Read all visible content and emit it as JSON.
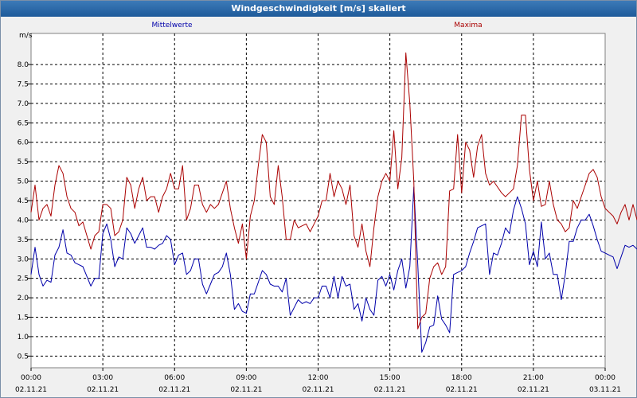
{
  "window": {
    "title": "Windgeschwindigkeit [m/s] skaliert"
  },
  "chart_data": {
    "type": "line",
    "y_unit": "m/s",
    "ylim": [
      0.2,
      8.8
    ],
    "y_ticks": [
      "0.5",
      "1.0",
      "1.5",
      "2.0",
      "2.5",
      "3.0",
      "3.5",
      "4.0",
      "4.5",
      "5.0",
      "5.5",
      "6.0",
      "6.5",
      "7.0",
      "7.5",
      "8.0"
    ],
    "xlim_hours": [
      0,
      24
    ],
    "x_ticks": [
      {
        "time": "00:00",
        "date": "02.11.21"
      },
      {
        "time": "03:00",
        "date": "02.11.21"
      },
      {
        "time": "06:00",
        "date": "02.11.21"
      },
      {
        "time": "09:00",
        "date": "02.11.21"
      },
      {
        "time": "12:00",
        "date": "02.11.21"
      },
      {
        "time": "15:00",
        "date": "02.11.21"
      },
      {
        "time": "18:00",
        "date": "02.11.21"
      },
      {
        "time": "21:00",
        "date": "02.11.21"
      },
      {
        "time": "00:00",
        "date": "03.11.21"
      }
    ],
    "grid": true,
    "sample_interval_minutes": 10,
    "series": [
      {
        "name": "Mittelwerte",
        "color": "#0000aa",
        "values": [
          2.6,
          3.3,
          2.6,
          2.3,
          2.45,
          2.4,
          3.1,
          3.3,
          3.75,
          3.15,
          3.1,
          2.9,
          2.85,
          2.8,
          2.55,
          2.3,
          2.5,
          2.5,
          3.65,
          3.9,
          3.5,
          2.8,
          3.05,
          3.0,
          3.8,
          3.65,
          3.4,
          3.6,
          3.8,
          3.3,
          3.3,
          3.25,
          3.35,
          3.4,
          3.6,
          3.5,
          2.85,
          3.1,
          3.15,
          2.6,
          2.7,
          3.0,
          3.0,
          2.35,
          2.1,
          2.35,
          2.6,
          2.65,
          2.8,
          3.15,
          2.6,
          1.7,
          1.85,
          1.65,
          1.6,
          2.1,
          2.1,
          2.4,
          2.7,
          2.6,
          2.35,
          2.3,
          2.3,
          2.15,
          2.5,
          1.55,
          1.75,
          1.95,
          1.85,
          1.9,
          1.85,
          2.0,
          2.0,
          2.3,
          2.3,
          2.0,
          2.55,
          2.0,
          2.55,
          2.3,
          2.35,
          1.7,
          1.85,
          1.4,
          2.0,
          1.7,
          1.55,
          2.45,
          2.55,
          2.3,
          2.6,
          2.2,
          2.7,
          3.0,
          2.25,
          2.8,
          4.85,
          2.85,
          0.6,
          0.85,
          1.25,
          1.3,
          2.05,
          1.45,
          1.3,
          1.1,
          2.6,
          2.65,
          2.7,
          2.8,
          3.15,
          3.45,
          3.8,
          3.85,
          3.9,
          2.6,
          3.15,
          3.1,
          3.4,
          3.8,
          3.65,
          4.25,
          4.6,
          4.3,
          3.9,
          2.85,
          3.2,
          2.8,
          3.95,
          3.0,
          3.15,
          2.6,
          2.6,
          1.95,
          2.6,
          3.45,
          3.45,
          3.8,
          4.0,
          4.0,
          4.15,
          3.85,
          3.5,
          3.2,
          3.15,
          3.1,
          3.05,
          2.75,
          3.05,
          3.35,
          3.3,
          3.35,
          3.25
        ]
      },
      {
        "name": "Maxima",
        "color": "#aa0000",
        "values": [
          4.2,
          4.9,
          4.0,
          4.3,
          4.4,
          4.1,
          4.9,
          5.4,
          5.2,
          4.6,
          4.3,
          4.2,
          3.85,
          3.95,
          3.6,
          3.25,
          3.6,
          3.7,
          4.4,
          4.4,
          4.3,
          3.6,
          3.7,
          4.0,
          5.1,
          4.9,
          4.3,
          4.8,
          5.1,
          4.5,
          4.6,
          4.6,
          4.2,
          4.6,
          4.8,
          5.2,
          4.8,
          4.8,
          5.4,
          4.0,
          4.3,
          4.9,
          4.9,
          4.4,
          4.2,
          4.4,
          4.3,
          4.4,
          4.7,
          5.0,
          4.3,
          3.8,
          3.4,
          3.9,
          3.0,
          4.1,
          4.5,
          5.4,
          6.2,
          6.0,
          4.6,
          4.4,
          5.4,
          4.6,
          3.5,
          3.5,
          4.0,
          3.8,
          3.85,
          3.9,
          3.7,
          3.9,
          4.1,
          4.5,
          4.5,
          5.2,
          4.6,
          5.0,
          4.8,
          4.4,
          4.9,
          3.6,
          3.3,
          3.9,
          3.2,
          2.8,
          3.8,
          4.6,
          5.0,
          5.2,
          5.0,
          6.3,
          4.8,
          5.6,
          8.3,
          7.0,
          5.0,
          1.2,
          1.5,
          1.6,
          2.5,
          2.8,
          2.9,
          2.6,
          2.8,
          4.75,
          4.8,
          6.2,
          4.7,
          6.0,
          5.8,
          5.1,
          5.9,
          6.2,
          5.2,
          4.9,
          5.0,
          4.85,
          4.7,
          4.6,
          4.7,
          4.8,
          5.4,
          6.7,
          6.7,
          5.3,
          4.5,
          5.0,
          4.35,
          4.4,
          5.0,
          4.4,
          4.0,
          3.9,
          3.7,
          3.8,
          4.5,
          4.3,
          4.6,
          4.9,
          5.2,
          5.3,
          5.1,
          4.6,
          4.3,
          4.2,
          4.1,
          3.9,
          4.2,
          4.4,
          4.0,
          4.4,
          4.0
        ]
      }
    ]
  }
}
